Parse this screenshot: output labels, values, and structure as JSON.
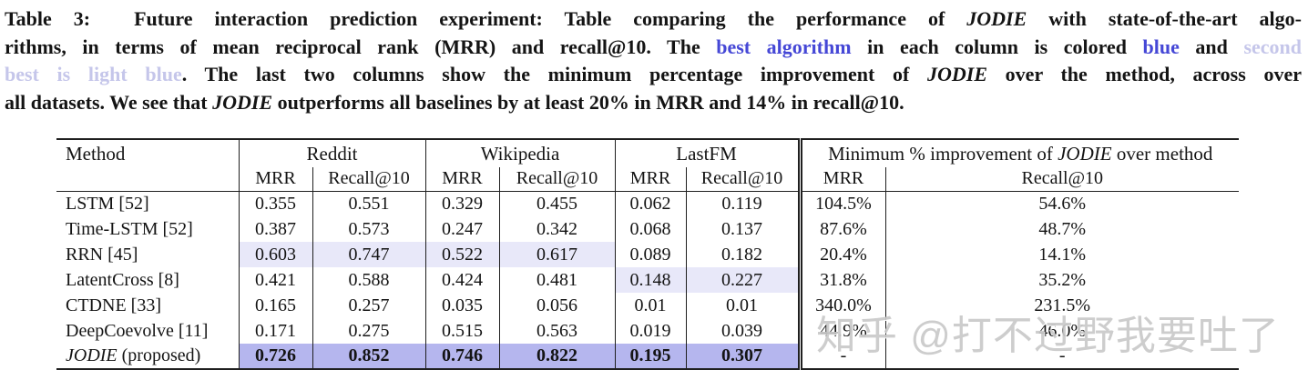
{
  "caption": {
    "lines": [
      [
        {
          "t": "Table 3:  Future interaction prediction experiment: Table comparing the performance of "
        },
        {
          "t": "JODIE",
          "s": "i"
        },
        {
          "t": " with state-of-the-art algo-"
        }
      ],
      [
        {
          "t": "rithms, in terms of mean reciprocal rank (MRR) and recall@10. The "
        },
        {
          "t": "best algorithm",
          "s": "blue"
        },
        {
          "t": " in each column is colored "
        },
        {
          "t": "blue",
          "s": "blue"
        },
        {
          "t": " and "
        },
        {
          "t": "second",
          "s": "lightblue"
        }
      ],
      [
        {
          "t": "best is light blue",
          "s": "lightblue"
        },
        {
          "t": ". The last two columns show the minimum percentage improvement of "
        },
        {
          "t": "JODIE",
          "s": "i"
        },
        {
          "t": " over the method, across over"
        }
      ],
      [
        {
          "t": "all datasets. We see that "
        },
        {
          "t": "JODIE",
          "s": "i"
        },
        {
          "t": " outperforms all baselines by at least 20% in MRR and 14% in recall@10."
        }
      ]
    ]
  },
  "table": {
    "method_header": "Method",
    "groups": [
      {
        "key": "reddit",
        "cols": 2,
        "label": [
          {
            "t": "Reddit"
          }
        ]
      },
      {
        "key": "wikipedia",
        "cols": 2,
        "label": [
          {
            "t": "Wikipedia"
          }
        ]
      },
      {
        "key": "lastfm",
        "cols": 2,
        "label": [
          {
            "t": "LastFM"
          }
        ]
      },
      {
        "key": "improvement",
        "cols": 2,
        "label": [
          {
            "t": "Minimum % improvement of "
          },
          {
            "t": "JODIE",
            "s": "i"
          },
          {
            "t": " over method"
          }
        ]
      }
    ],
    "subheaders": [
      "MRR",
      "Recall@10",
      "MRR",
      "Recall@10",
      "MRR",
      "Recall@10",
      "MRR",
      "Recall@10"
    ],
    "rows": [
      {
        "method": [
          {
            "t": "LSTM [52]"
          }
        ],
        "cells": [
          {
            "v": "0.355"
          },
          {
            "v": "0.551"
          },
          {
            "v": "0.329"
          },
          {
            "v": "0.455"
          },
          {
            "v": "0.062"
          },
          {
            "v": "0.119"
          },
          {
            "v": "104.5%"
          },
          {
            "v": "54.6%"
          }
        ]
      },
      {
        "method": [
          {
            "t": "Time-LSTM [52]"
          }
        ],
        "cells": [
          {
            "v": "0.387"
          },
          {
            "v": "0.573"
          },
          {
            "v": "0.247"
          },
          {
            "v": "0.342"
          },
          {
            "v": "0.068"
          },
          {
            "v": "0.137"
          },
          {
            "v": "87.6%"
          },
          {
            "v": "48.7%"
          }
        ]
      },
      {
        "method": [
          {
            "t": "RRN [45]"
          }
        ],
        "cells": [
          {
            "v": "0.603",
            "hl": "second"
          },
          {
            "v": "0.747",
            "hl": "second"
          },
          {
            "v": "0.522",
            "hl": "second"
          },
          {
            "v": "0.617",
            "hl": "second"
          },
          {
            "v": "0.089"
          },
          {
            "v": "0.182"
          },
          {
            "v": "20.4%"
          },
          {
            "v": "14.1%"
          }
        ]
      },
      {
        "method": [
          {
            "t": "LatentCross [8]"
          }
        ],
        "cells": [
          {
            "v": "0.421"
          },
          {
            "v": "0.588"
          },
          {
            "v": "0.424"
          },
          {
            "v": "0.481"
          },
          {
            "v": "0.148",
            "hl": "second"
          },
          {
            "v": "0.227",
            "hl": "second"
          },
          {
            "v": "31.8%"
          },
          {
            "v": "35.2%"
          }
        ]
      },
      {
        "method": [
          {
            "t": "CTDNE [33]"
          }
        ],
        "cells": [
          {
            "v": "0.165"
          },
          {
            "v": "0.257"
          },
          {
            "v": "0.035"
          },
          {
            "v": "0.056"
          },
          {
            "v": "0.01"
          },
          {
            "v": "0.01"
          },
          {
            "v": "340.0%"
          },
          {
            "v": "231.5%"
          }
        ]
      },
      {
        "method": [
          {
            "t": "DeepCoevolve [11]"
          }
        ],
        "cells": [
          {
            "v": "0.171"
          },
          {
            "v": "0.275"
          },
          {
            "v": "0.515"
          },
          {
            "v": "0.563"
          },
          {
            "v": "0.019"
          },
          {
            "v": "0.039"
          },
          {
            "v": "44.9%"
          },
          {
            "v": "46.0%"
          }
        ]
      },
      {
        "method": [
          {
            "t": "JODIE",
            "s": "i"
          },
          {
            "t": " (proposed)"
          }
        ],
        "cells": [
          {
            "v": "0.726",
            "hl": "best"
          },
          {
            "v": "0.852",
            "hl": "best"
          },
          {
            "v": "0.746",
            "hl": "best"
          },
          {
            "v": "0.822",
            "hl": "best"
          },
          {
            "v": "0.195",
            "hl": "best"
          },
          {
            "v": "0.307",
            "hl": "best"
          },
          {
            "v": "-"
          },
          {
            "v": "-"
          }
        ]
      }
    ]
  },
  "watermark": {
    "text": "知乎 @打不过野我要吐了"
  },
  "colors": {
    "caption_blue": "#4547d6",
    "caption_lightblue": "#c5c6ea",
    "best_highlight": "#b5b6ee",
    "second_highlight": "#e8e8f9",
    "watermark_gray": "#c9c9c9"
  }
}
